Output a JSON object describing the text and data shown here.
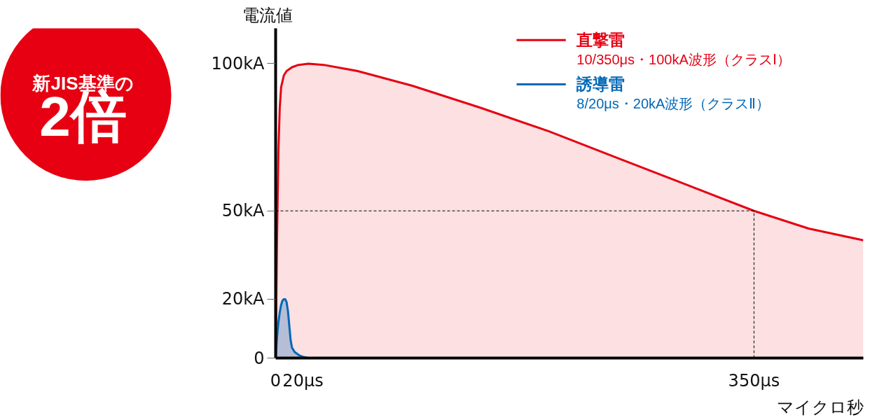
{
  "chart_data": {
    "type": "area",
    "ylabel": "電流値",
    "xlabel": "マイクロ秒",
    "xlim": [
      0,
      430
    ],
    "ylim": [
      0,
      112
    ],
    "xticks": [
      0,
      {
        "value": 20,
        "label": "20μs"
      },
      {
        "value": 350,
        "label": "350μs"
      }
    ],
    "yticks": [
      0,
      {
        "value": 20,
        "label": "20kA"
      },
      {
        "value": 50,
        "label": "50kA"
      },
      {
        "value": 100,
        "label": "100kA"
      }
    ],
    "series": [
      {
        "name": "直撃雷\n10/350μs・100kA波形（クラスⅠ）",
        "color": "#e60012",
        "x": [
          0,
          1,
          2,
          3,
          4,
          6,
          8,
          12,
          16,
          24,
          35,
          60,
          100,
          150,
          200,
          250,
          300,
          350,
          390,
          430
        ],
        "values": [
          0,
          40,
          70,
          85,
          92,
          96,
          97.5,
          98.8,
          99.5,
          100,
          99.6,
          97.5,
          92.5,
          85,
          77,
          68,
          59,
          50,
          44,
          40
        ]
      },
      {
        "name": "誘導雷\n8/20μs・20kA波形（クラスⅡ）",
        "color": "#0068b7",
        "x": [
          0,
          1,
          2,
          3,
          4,
          5,
          6,
          7,
          8,
          9,
          10,
          11,
          12,
          14,
          17,
          20,
          24
        ],
        "values": [
          0,
          7,
          12,
          15.5,
          18,
          19.5,
          20,
          20,
          19,
          16,
          11,
          6,
          3.5,
          2,
          1,
          0.4,
          0
        ]
      }
    ],
    "ref_lines": [
      {
        "axis": "y",
        "value": 50,
        "line_style": "dashed"
      },
      {
        "axis": "x",
        "value": 350,
        "line_style": "dashed"
      }
    ],
    "legend": "top right",
    "grid": false,
    "marker": "none",
    "line_style": "solid",
    "annotations": [
      "新JIS基準の",
      "2倍"
    ]
  }
}
